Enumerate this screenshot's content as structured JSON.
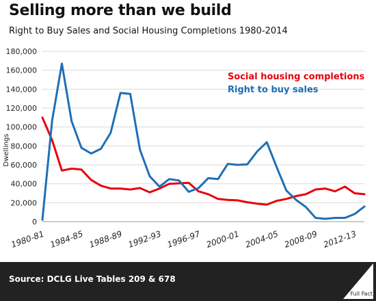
{
  "header": {
    "title": "Selling more than we build",
    "subtitle": "Right to Buy Sales and Social Housing Completions 1980-2014"
  },
  "footer": {
    "source": "Source: DCLG Live Tables 209 & 678",
    "logo_text": "Full Fact"
  },
  "chart_data": {
    "type": "line",
    "title": "Selling more than we build",
    "subtitle": "Right to Buy Sales and Social Housing Completions 1980-2014",
    "xlabel": "",
    "ylabel": "Dwellings",
    "ylim": [
      0,
      180000
    ],
    "yticks": [
      0,
      20000,
      40000,
      60000,
      80000,
      100000,
      120000,
      140000,
      160000,
      180000
    ],
    "ytick_labels": [
      "0",
      "20,000",
      "40,000",
      "60,000",
      "80,000",
      "100,000",
      "120,000",
      "140,000",
      "160,000",
      "180,000"
    ],
    "x": [
      "1980-81",
      "1981-82",
      "1982-83",
      "1983-84",
      "1984-85",
      "1985-86",
      "1986-87",
      "1987-88",
      "1988-89",
      "1989-90",
      "1990-91",
      "1991-92",
      "1992-93",
      "1993-94",
      "1994-95",
      "1995-96",
      "1996-97",
      "1997-98",
      "1998-99",
      "1999-00",
      "2000-01",
      "2001-02",
      "2002-03",
      "2003-04",
      "2004-05",
      "2005-06",
      "2006-07",
      "2007-08",
      "2008-09",
      "2009-10",
      "2010-11",
      "2011-12",
      "2012-13",
      "2013-14"
    ],
    "xtick_labels": [
      "1980-81",
      "1984-85",
      "1988-89",
      "1992-93",
      "1996-97",
      "2000-01",
      "2004-05",
      "2008-09",
      "2012-13"
    ],
    "xtick_indices": [
      0,
      4,
      8,
      12,
      16,
      20,
      24,
      28,
      32
    ],
    "legend_position": "top-right",
    "grid": true,
    "series": [
      {
        "name": "Social housing completions",
        "color": "#e8000b",
        "values": [
          110000,
          86000,
          54000,
          56000,
          55000,
          44000,
          38000,
          35000,
          35000,
          34000,
          35500,
          31000,
          35000,
          40000,
          40500,
          41000,
          32000,
          29000,
          24000,
          23000,
          22500,
          20500,
          19000,
          18000,
          22000,
          24000,
          27000,
          29000,
          34000,
          35000,
          32000,
          37000,
          30000,
          29000
        ]
      },
      {
        "name": "Right to buy sales",
        "color": "#1f6eb5",
        "values": [
          2000,
          107000,
          167000,
          106000,
          78000,
          72000,
          77000,
          94000,
          136000,
          135000,
          76000,
          48000,
          37000,
          45000,
          43500,
          31500,
          35500,
          46000,
          45000,
          61000,
          60000,
          60500,
          74000,
          84000,
          58000,
          33000,
          23000,
          15500,
          4000,
          3000,
          4000,
          4000,
          8000,
          16000
        ]
      }
    ]
  }
}
